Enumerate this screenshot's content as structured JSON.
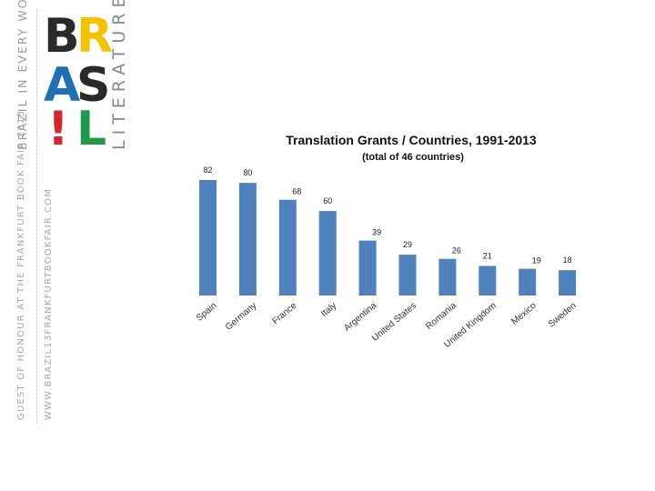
{
  "branding": {
    "tagline": "BRAZIL IN EVERY WORD",
    "logo_letters": [
      "B",
      "R",
      "A",
      "S",
      "!",
      "L"
    ],
    "logo_colors": [
      "#2a2a2a",
      "#f2c400",
      "#1f6fb5",
      "#2a2a2a",
      "#d6262b",
      "#1f9a46"
    ],
    "literature": "LITERATURE",
    "guest_of_honour": "GUEST OF HONOUR AT THE FRANKFURT BOOK FAIR 2013",
    "website": "WWW.BRAZIL13FRANKFURTBOOKFAIR.COM"
  },
  "chart_data": {
    "type": "bar",
    "title": "Translation Grants / Countries, 1991-2013",
    "subtitle": "(total of 46 countries)",
    "categories": [
      "Spain",
      "Germany",
      "France",
      "Italy",
      "Argentina",
      "United States",
      "Romania",
      "United Kingdom",
      "Mexico",
      "Sweden"
    ],
    "values": [
      82,
      80,
      68,
      60,
      39,
      29,
      26,
      21,
      19,
      18
    ],
    "ylim": [
      0,
      82
    ],
    "bar_color": "#4f81bd",
    "grid": false,
    "legend": false
  }
}
